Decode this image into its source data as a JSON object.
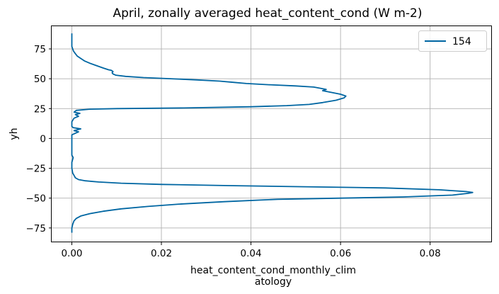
{
  "chart_data": {
    "type": "line",
    "title": "April, zonally averaged heat_content_cond (W m-2)",
    "xlabel_line1": "heat_content_cond_monthly_clim",
    "xlabel_line2": "atology",
    "ylabel": "yh",
    "xlim": [
      -0.0045,
      0.0938
    ],
    "ylim": [
      -87,
      94
    ],
    "xticks": [
      0.0,
      0.02,
      0.04,
      0.06,
      0.08
    ],
    "xtick_labels": [
      "0.00",
      "0.02",
      "0.04",
      "0.06",
      "0.08"
    ],
    "yticks": [
      -75,
      -50,
      -25,
      0,
      25,
      50,
      75
    ],
    "ytick_labels": [
      "−75",
      "−50",
      "−25",
      "0",
      "25",
      "50",
      "75"
    ],
    "grid": true,
    "legend_position": "top-right",
    "series": [
      {
        "name": "154",
        "color": "#0066a2",
        "points": [
          [
            0.0,
            -79
          ],
          [
            0.0,
            -75
          ],
          [
            0.0002,
            -72
          ],
          [
            0.0005,
            -69
          ],
          [
            0.001,
            -67
          ],
          [
            0.002,
            -65
          ],
          [
            0.004,
            -63
          ],
          [
            0.007,
            -61
          ],
          [
            0.011,
            -59
          ],
          [
            0.017,
            -57
          ],
          [
            0.024,
            -55
          ],
          [
            0.034,
            -53
          ],
          [
            0.046,
            -51
          ],
          [
            0.06,
            -50
          ],
          [
            0.074,
            -49
          ],
          [
            0.085,
            -47.5
          ],
          [
            0.0885,
            -46
          ],
          [
            0.0895,
            -45.3
          ],
          [
            0.088,
            -44.5
          ],
          [
            0.082,
            -43
          ],
          [
            0.07,
            -41.5
          ],
          [
            0.052,
            -40.5
          ],
          [
            0.035,
            -39.5
          ],
          [
            0.02,
            -38.5
          ],
          [
            0.011,
            -37.5
          ],
          [
            0.006,
            -36.5
          ],
          [
            0.003,
            -35.5
          ],
          [
            0.0015,
            -34.5
          ],
          [
            0.0008,
            -33
          ],
          [
            0.0005,
            -31
          ],
          [
            0.0002,
            -29
          ],
          [
            0.0001,
            -27
          ],
          [
            0.0,
            -25
          ],
          [
            0.0,
            -20
          ],
          [
            0.0003,
            -16
          ],
          [
            0.0,
            -14
          ],
          [
            0.0,
            -8
          ],
          [
            0.0,
            -3
          ],
          [
            0.0,
            3
          ],
          [
            0.0015,
            5.5
          ],
          [
            0.0005,
            6.5
          ],
          [
            0.002,
            8
          ],
          [
            0.0003,
            9
          ],
          [
            0.0,
            10
          ],
          [
            0.0,
            14
          ],
          [
            0.0005,
            17
          ],
          [
            0.0015,
            18.5
          ],
          [
            0.0008,
            20
          ],
          [
            0.0018,
            21
          ],
          [
            0.0005,
            22
          ],
          [
            0.001,
            23.5
          ],
          [
            0.004,
            24.5
          ],
          [
            0.01,
            25
          ],
          [
            0.025,
            25.5
          ],
          [
            0.04,
            26.5
          ],
          [
            0.048,
            27.5
          ],
          [
            0.053,
            28.5
          ],
          [
            0.056,
            30
          ],
          [
            0.059,
            32
          ],
          [
            0.0608,
            34
          ],
          [
            0.0612,
            35.5
          ],
          [
            0.06,
            37
          ],
          [
            0.058,
            38.5
          ],
          [
            0.056,
            40
          ],
          [
            0.0568,
            41
          ],
          [
            0.0555,
            42
          ],
          [
            0.054,
            43
          ],
          [
            0.05,
            44
          ],
          [
            0.044,
            45
          ],
          [
            0.039,
            46
          ],
          [
            0.036,
            47
          ],
          [
            0.033,
            48
          ],
          [
            0.028,
            49
          ],
          [
            0.022,
            50
          ],
          [
            0.016,
            51
          ],
          [
            0.012,
            52
          ],
          [
            0.0098,
            53
          ],
          [
            0.0092,
            54
          ],
          [
            0.009,
            55
          ],
          [
            0.0092,
            56
          ],
          [
            0.0088,
            57
          ],
          [
            0.0082,
            57.5
          ],
          [
            0.007,
            59
          ],
          [
            0.0055,
            61
          ],
          [
            0.004,
            63
          ],
          [
            0.0028,
            65
          ],
          [
            0.002,
            67
          ],
          [
            0.0012,
            69
          ],
          [
            0.0008,
            71
          ],
          [
            0.0004,
            73
          ],
          [
            0.0002,
            75
          ],
          [
            0.0,
            77
          ],
          [
            0.0,
            80
          ],
          [
            0.0,
            85
          ],
          [
            0.0,
            88
          ]
        ]
      }
    ]
  }
}
